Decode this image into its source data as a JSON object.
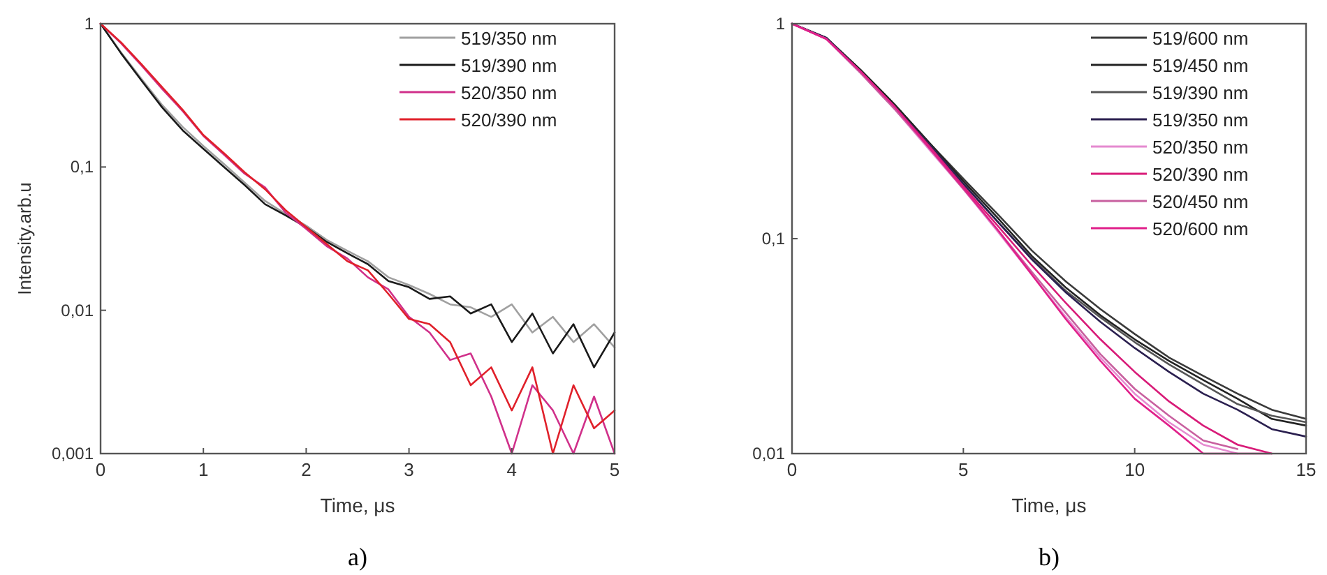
{
  "chart_data": [
    {
      "type": "line",
      "xlabel": "Time, μs",
      "ylabel": "Intensity.arb.u",
      "log": "y",
      "legend": "top right",
      "marker": "none",
      "line_style": "solid",
      "grid": false,
      "annotations": [
        "a)"
      ],
      "xlim": [
        0,
        5
      ],
      "xticks": [
        0,
        1,
        2,
        3,
        4,
        5
      ],
      "ylim": [
        0.001,
        1
      ],
      "yticks": [
        {
          "value": 0.001,
          "label": "0,001"
        },
        {
          "value": 0.01,
          "label": "0,01"
        },
        {
          "value": 0.1,
          "label": "0,1"
        },
        1
      ],
      "x": [
        0,
        0.2,
        0.4,
        0.6,
        0.8,
        1.0,
        1.2,
        1.4,
        1.6,
        1.8,
        2.0,
        2.2,
        2.4,
        2.6,
        2.8,
        3.0,
        3.2,
        3.4,
        3.6,
        3.8,
        4.0,
        4.2,
        4.4,
        4.6,
        4.8,
        5.0
      ],
      "series": [
        {
          "name": "519/350 nm",
          "color": "#a0a0a0",
          "values": [
            1,
            0.63,
            0.41,
            0.27,
            0.19,
            0.14,
            0.105,
            0.078,
            0.058,
            0.047,
            0.039,
            0.031,
            0.026,
            0.022,
            0.017,
            0.015,
            0.013,
            0.011,
            0.0105,
            0.009,
            0.011,
            0.007,
            0.009,
            0.006,
            0.008,
            0.0055
          ]
        },
        {
          "name": "519/390 nm",
          "color": "#1a1a1a",
          "values": [
            1,
            0.62,
            0.4,
            0.26,
            0.18,
            0.134,
            0.1,
            0.075,
            0.055,
            0.046,
            0.038,
            0.03,
            0.025,
            0.021,
            0.016,
            0.0145,
            0.012,
            0.0125,
            0.0095,
            0.011,
            0.006,
            0.0095,
            0.005,
            0.008,
            0.004,
            0.007
          ]
        },
        {
          "name": "520/350 nm",
          "color": "#d0308a",
          "values": [
            1,
            0.73,
            0.51,
            0.35,
            0.245,
            0.165,
            0.122,
            0.09,
            0.072,
            0.048,
            0.037,
            0.028,
            0.023,
            0.017,
            0.014,
            0.009,
            0.007,
            0.0045,
            0.005,
            0.0025,
            0.001,
            0.003,
            0.002,
            0.001,
            0.0025,
            0.001
          ]
        },
        {
          "name": "520/390 nm",
          "color": "#e0202a",
          "values": [
            1,
            0.74,
            0.52,
            0.36,
            0.25,
            0.167,
            0.125,
            0.092,
            0.07,
            0.05,
            0.038,
            0.029,
            0.022,
            0.019,
            0.013,
            0.0087,
            0.008,
            0.006,
            0.003,
            0.004,
            0.002,
            0.004,
            0.001,
            0.003,
            0.0015,
            0.002
          ]
        }
      ]
    },
    {
      "type": "line",
      "xlabel": "Time, μs",
      "log": "y",
      "legend": "top right",
      "marker": "none",
      "line_style": "solid",
      "grid": false,
      "annotations": [
        "b)"
      ],
      "xlim": [
        0,
        15
      ],
      "xticks": [
        0,
        5,
        10,
        15
      ],
      "ylim": [
        0.01,
        1
      ],
      "yticks": [
        {
          "value": 0.01,
          "label": "0,01"
        },
        {
          "value": 0.1,
          "label": "0,1"
        },
        1
      ],
      "x": [
        0,
        1,
        2,
        3,
        4,
        5,
        6,
        7,
        8,
        9,
        10,
        11,
        12,
        13,
        14,
        15
      ],
      "series": [
        {
          "name": "519/600 nm",
          "color": "#3a3a3a",
          "values": [
            1,
            0.86,
            0.61,
            0.42,
            0.28,
            0.19,
            0.13,
            0.088,
            0.063,
            0.047,
            0.036,
            0.028,
            0.023,
            0.019,
            0.016,
            0.0145
          ]
        },
        {
          "name": "519/450 nm",
          "color": "#222222",
          "values": [
            1,
            0.86,
            0.61,
            0.42,
            0.28,
            0.185,
            0.125,
            0.083,
            0.059,
            0.044,
            0.034,
            0.027,
            0.022,
            0.018,
            0.0145,
            0.0135
          ]
        },
        {
          "name": "519/390 nm",
          "color": "#555555",
          "values": [
            1,
            0.86,
            0.6,
            0.41,
            0.275,
            0.18,
            0.12,
            0.081,
            0.057,
            0.043,
            0.033,
            0.026,
            0.021,
            0.017,
            0.015,
            0.014
          ]
        },
        {
          "name": "519/350 nm",
          "color": "#2a1f4f",
          "values": [
            1,
            0.86,
            0.6,
            0.41,
            0.275,
            0.18,
            0.12,
            0.08,
            0.056,
            0.041,
            0.031,
            0.024,
            0.019,
            0.016,
            0.013,
            0.012
          ]
        },
        {
          "name": "520/350 nm",
          "color": "#e58ad0",
          "values": [
            1,
            0.85,
            0.59,
            0.4,
            0.26,
            0.17,
            0.108,
            0.068,
            0.043,
            0.028,
            0.019,
            0.014,
            0.011,
            0.01,
            null,
            null
          ]
        },
        {
          "name": "520/390 nm",
          "color": "#d81b78",
          "values": [
            1,
            0.85,
            0.6,
            0.41,
            0.27,
            0.175,
            0.115,
            0.075,
            0.05,
            0.034,
            0.024,
            0.0175,
            0.0135,
            0.011,
            0.01,
            null
          ]
        },
        {
          "name": "520/450 nm",
          "color": "#c8609f",
          "values": [
            1,
            0.85,
            0.59,
            0.4,
            0.265,
            0.17,
            0.11,
            0.07,
            0.045,
            0.029,
            0.02,
            0.015,
            0.0115,
            0.0105,
            null,
            null
          ]
        },
        {
          "name": "520/600 nm",
          "color": "#e0208a",
          "values": [
            1,
            0.85,
            0.6,
            0.41,
            0.265,
            0.172,
            0.11,
            0.068,
            0.042,
            0.027,
            0.018,
            0.0135,
            0.01,
            0.01,
            0.01,
            null
          ]
        }
      ]
    }
  ]
}
